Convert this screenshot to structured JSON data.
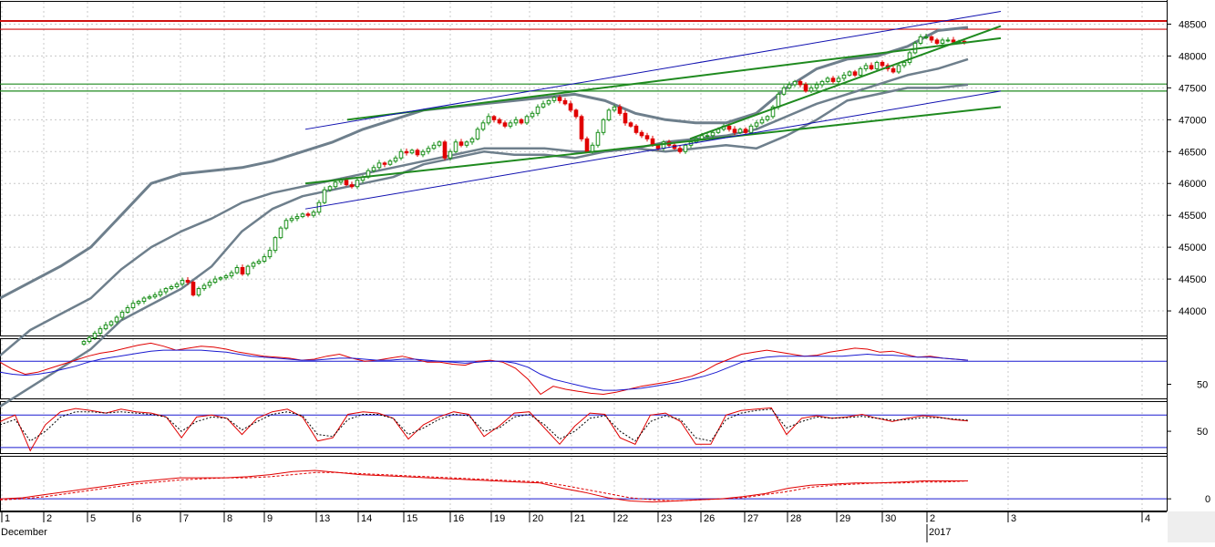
{
  "colors": {
    "up_candle": "#1a8f1a",
    "down_candle": "#e00000",
    "bollinger": "#6e7f8c",
    "trend_green": "#1f8a1f",
    "trend_blue": "#1010b0",
    "resistance_red": "#d01010",
    "support_green": "#1f8a1f",
    "osc_red": "#e00000",
    "osc_blue": "#1a1ad0",
    "grid": "#c8c8c8"
  },
  "chart_data": [
    {
      "type": "candlestick",
      "name": "price",
      "y_ticks": [
        "48500",
        "48000",
        "47500",
        "47000",
        "46500",
        "46000",
        "45500",
        "45000",
        "44500",
        "44000"
      ],
      "ylim": [
        43600,
        48850
      ],
      "horizontal_levels": [
        48550,
        48420,
        47560,
        47450
      ],
      "x_labels": [
        "1",
        "2",
        "5",
        "6",
        "7",
        "8",
        "9",
        "13",
        "14",
        "15",
        "16",
        "19",
        "20",
        "21",
        "22",
        "23",
        "26",
        "27",
        "28",
        "29",
        "30",
        "2",
        "3",
        "4"
      ],
      "period_labels": [
        "December",
        "2017"
      ],
      "closes": [
        43520,
        43580,
        43650,
        43720,
        43780,
        43830,
        43900,
        43980,
        44050,
        44120,
        44150,
        44200,
        44220,
        44250,
        44300,
        44350,
        44380,
        44420,
        44480,
        44450,
        44250,
        44350,
        44400,
        44450,
        44500,
        44520,
        44550,
        44600,
        44680,
        44580,
        44700,
        44750,
        44780,
        44850,
        44950,
        45150,
        45300,
        45420,
        45450,
        45480,
        45520,
        45500,
        45550,
        45700,
        45900,
        45950,
        46020,
        46050,
        45980,
        45950,
        46050,
        46100,
        46200,
        46250,
        46320,
        46300,
        46350,
        46400,
        46500,
        46480,
        46520,
        46450,
        46500,
        46550,
        46600,
        46650,
        46400,
        46500,
        46650,
        46600,
        46650,
        46700,
        46850,
        46950,
        47050,
        47000,
        46950,
        46900,
        46950,
        47000,
        46950,
        47050,
        47100,
        47200,
        47250,
        47300,
        47350,
        47300,
        47250,
        47150,
        47050,
        46700,
        46500,
        46600,
        46800,
        47000,
        47150,
        47200,
        47100,
        46950,
        46900,
        46800,
        46750,
        46700,
        46600,
        46550,
        46650,
        46600,
        46550,
        46500,
        46600,
        46650,
        46700,
        46750,
        46750,
        46800,
        46850,
        46900,
        46850,
        46800,
        46850,
        46800,
        46900,
        46950,
        47000,
        47050,
        47200,
        47400,
        47500,
        47550,
        47600,
        47550,
        47450,
        47500,
        47550,
        47600,
        47650,
        47600,
        47650,
        47700,
        47750,
        47700,
        47800,
        47850,
        47800,
        47900,
        47850,
        47800,
        47750,
        47850,
        47900,
        48050,
        48200,
        48300,
        48300,
        48250,
        48200,
        48250,
        48250,
        48220,
        48230,
        48210
      ],
      "bollinger_upper": [
        44200,
        44450,
        44700,
        45000,
        45500,
        46000,
        46150,
        46200,
        46250,
        46350,
        46500,
        46650,
        46850,
        47000,
        47150,
        47200,
        47250,
        47300,
        47350,
        47400,
        47300,
        47100,
        47000,
        46950,
        46950,
        47100,
        47500,
        47800,
        47950,
        48000,
        48150,
        48400,
        48450
      ],
      "bollinger_middle": [
        43300,
        43700,
        43950,
        44200,
        44650,
        45000,
        45250,
        45450,
        45700,
        45850,
        45950,
        46050,
        46150,
        46250,
        46350,
        46450,
        46550,
        46550,
        46550,
        46500,
        46500,
        46550,
        46650,
        46700,
        46750,
        46850,
        47050,
        47250,
        47400,
        47550,
        47700,
        47800,
        47950
      ],
      "bollinger_lower": [
        42500,
        42800,
        43100,
        43400,
        43850,
        44100,
        44350,
        44700,
        45250,
        45600,
        45800,
        45900,
        46000,
        46100,
        46300,
        46400,
        46500,
        46450,
        46450,
        46400,
        46500,
        46550,
        46500,
        46550,
        46600,
        46550,
        46750,
        47000,
        47300,
        47400,
        47500,
        47500,
        47550
      ],
      "trend_lines": [
        {
          "color": "green",
          "from": [
            "13",
            46000
          ],
          "to": [
            "3",
            47200
          ]
        },
        {
          "color": "green",
          "from": [
            "14",
            47000
          ],
          "to": [
            "3",
            48280
          ]
        },
        {
          "color": "green",
          "from": [
            "26",
            46700
          ],
          "to": [
            "3",
            48470
          ]
        },
        {
          "color": "blue",
          "from": [
            "13",
            46850
          ],
          "to": [
            "3",
            48700
          ]
        },
        {
          "color": "blue",
          "from": [
            "13",
            45600
          ],
          "to": [
            "3",
            47450
          ]
        }
      ]
    },
    {
      "type": "line",
      "name": "oscillator-1",
      "y_ticks": [
        "50"
      ],
      "ylim": [
        35,
        95
      ],
      "reference_levels": [
        73
      ],
      "series": [
        {
          "color": "red",
          "values": [
            72,
            65,
            60,
            62,
            66,
            70,
            74,
            78,
            81,
            83,
            86,
            89,
            91,
            88,
            84,
            86,
            88,
            87,
            85,
            82,
            80,
            78,
            77,
            76,
            74,
            75,
            78,
            80,
            76,
            73,
            74,
            76,
            78,
            75,
            72,
            72,
            70,
            69,
            73,
            74,
            72,
            66,
            55,
            40,
            48,
            45,
            43,
            41,
            40,
            42,
            45,
            48,
            50,
            52,
            55,
            58,
            63,
            70,
            75,
            80,
            82,
            84,
            82,
            80,
            78,
            79,
            82,
            84,
            86,
            85,
            82,
            83,
            80,
            77,
            78,
            76,
            75,
            74
          ]
        },
        {
          "color": "blue",
          "values": [
            62,
            60,
            59,
            60,
            62,
            65,
            68,
            72,
            75,
            77,
            79,
            81,
            83,
            84,
            84,
            84,
            84,
            83,
            82,
            80,
            78,
            77,
            76,
            75,
            74,
            74,
            75,
            76,
            76,
            75,
            74,
            74,
            75,
            75,
            74,
            73,
            72,
            71,
            72,
            73,
            73,
            71,
            67,
            60,
            55,
            52,
            49,
            46,
            44,
            44,
            45,
            46,
            48,
            50,
            52,
            55,
            58,
            62,
            67,
            72,
            75,
            77,
            78,
            78,
            78,
            78,
            78,
            78,
            79,
            80,
            79,
            79,
            78,
            77,
            77,
            76,
            75,
            74
          ]
        }
      ]
    },
    {
      "type": "line",
      "name": "oscillator-2",
      "y_ticks": [
        "50"
      ],
      "ylim": [
        15,
        95
      ],
      "reference_levels": [
        75,
        25
      ],
      "series": [
        {
          "color": "red",
          "values": [
            65,
            75,
            20,
            60,
            80,
            85,
            82,
            78,
            84,
            80,
            78,
            72,
            40,
            72,
            75,
            70,
            45,
            70,
            80,
            84,
            72,
            35,
            40,
            76,
            80,
            78,
            70,
            38,
            60,
            72,
            80,
            76,
            42,
            58,
            78,
            80,
            55,
            30,
            58,
            78,
            76,
            40,
            30,
            75,
            78,
            65,
            30,
            30,
            75,
            82,
            84,
            86,
            45,
            70,
            74,
            70,
            72,
            76,
            70,
            65,
            70,
            74,
            72,
            68,
            66
          ]
        },
        {
          "color": "blue",
          "values": [
            60,
            68,
            35,
            50,
            72,
            80,
            80,
            78,
            80,
            78,
            76,
            72,
            50,
            65,
            72,
            70,
            52,
            65,
            76,
            80,
            74,
            45,
            42,
            68,
            76,
            76,
            70,
            45,
            55,
            68,
            76,
            74,
            50,
            55,
            72,
            76,
            60,
            38,
            50,
            70,
            74,
            50,
            35,
            65,
            74,
            68,
            40,
            35,
            68,
            78,
            82,
            84,
            55,
            65,
            72,
            70,
            71,
            73,
            70,
            67,
            68,
            71,
            71,
            69,
            67
          ]
        }
      ]
    },
    {
      "type": "line",
      "name": "oscillator-3",
      "y_ticks": [
        "0"
      ],
      "ylim": [
        -12,
        40
      ],
      "reference_levels": [
        0
      ],
      "series": [
        {
          "color": "red",
          "values": [
            0,
            1,
            4,
            7,
            10,
            13,
            16,
            18,
            20,
            20,
            20,
            21,
            23,
            26,
            27,
            25,
            23,
            22,
            21,
            20,
            19,
            18,
            17,
            16,
            15,
            10,
            6,
            1,
            -2,
            -3,
            -2,
            -1,
            0,
            2,
            5,
            10,
            13,
            14,
            15,
            15,
            16,
            17,
            17,
            17
          ]
        },
        {
          "color": "red",
          "dashed": true,
          "values": [
            -1,
            0,
            2,
            5,
            8,
            11,
            14,
            16,
            18,
            19,
            20,
            20,
            21,
            23,
            25,
            25,
            24,
            23,
            22,
            21,
            20,
            19,
            18,
            17,
            16,
            13,
            9,
            5,
            1,
            -1,
            -2,
            -1,
            0,
            1,
            4,
            7,
            11,
            13,
            14,
            15,
            15,
            16,
            16,
            17
          ]
        }
      ]
    }
  ]
}
